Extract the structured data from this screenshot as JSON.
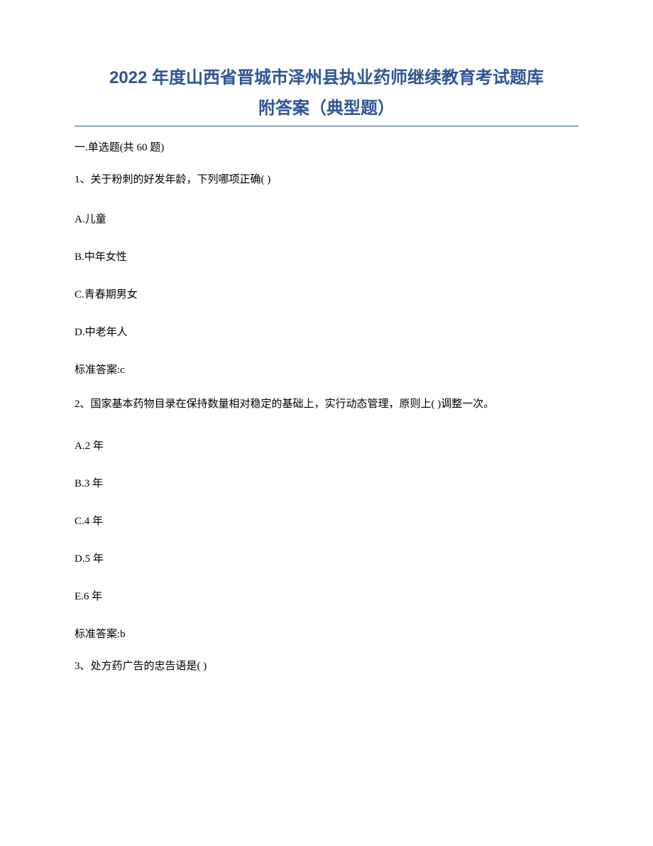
{
  "title": "2022 年度山西省晋城市泽州县执业药师继续教育考试题库",
  "subtitle": "附答案（典型题）",
  "section_header": "一.单选题(共 60 题)",
  "q1": {
    "text": "1、关于粉刺的好发年龄，下列哪项正确( )",
    "a": "A.儿童",
    "b": "B.中年女性",
    "c": "C.青春期男女",
    "d": "D.中老年人",
    "answer": "标准答案:c"
  },
  "q2": {
    "text": "2、国家基本药物目录在保持数量相对稳定的基础上，实行动态管理，原则上( )调整一次。",
    "a": "A.2 年",
    "b": "B.3 年",
    "c": "C.4 年",
    "d": "D.5 年",
    "e": "E.6 年",
    "answer": "标准答案:b"
  },
  "q3": {
    "text": "3、处方药广告的忠告语是( )"
  }
}
